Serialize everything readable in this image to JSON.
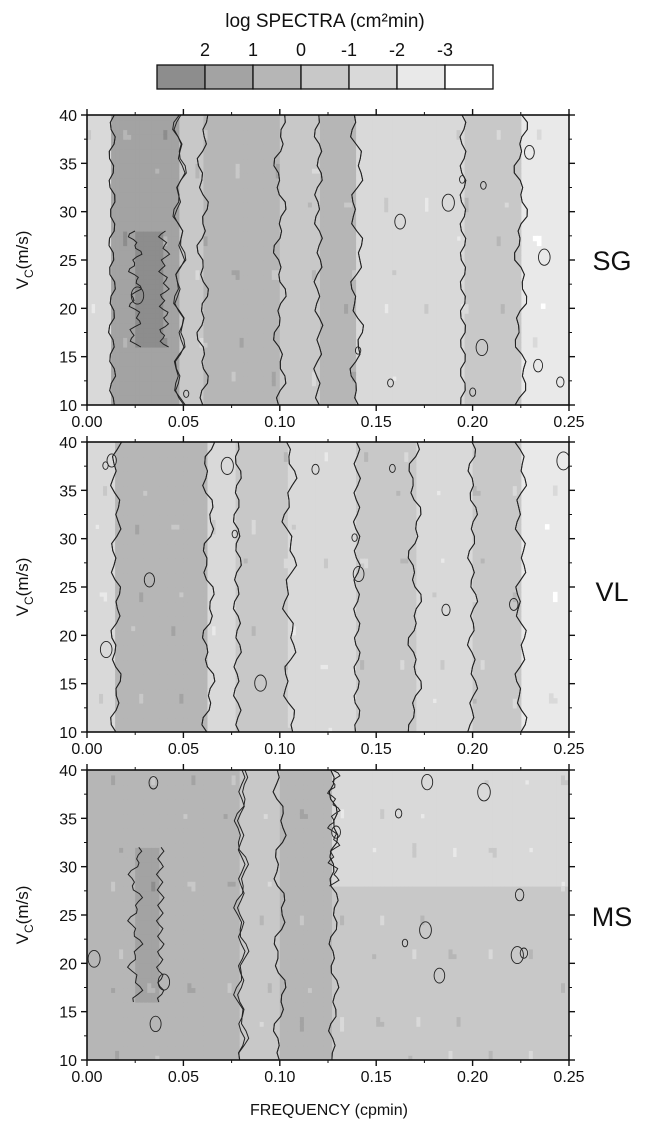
{
  "legend": {
    "title": "log SPECTRA (cm²min)",
    "levels": [
      "2",
      "1",
      "0",
      "-1",
      "-2",
      "-3"
    ],
    "colors": [
      "#8d8d8d",
      "#a3a3a3",
      "#b6b6b6",
      "#c8c8c8",
      "#d9d9d9",
      "#e9e9e9",
      "#ffffff"
    ]
  },
  "chart_data": [
    {
      "type": "heatmap",
      "panel_label": "SG",
      "ylabel": "VC(m/s)",
      "xlim": [
        0,
        0.25
      ],
      "ylim": [
        10,
        40
      ],
      "x_ticks": [
        "0.00",
        "0.05",
        "0.10",
        "0.15",
        "0.20",
        "0.25"
      ],
      "y_ticks": [
        "10",
        "15",
        "20",
        "25",
        "30",
        "35",
        "40"
      ],
      "dominant_bands": [
        {
          "x_from": 0.0,
          "x_to": 0.013,
          "level": "-1 to -2"
        },
        {
          "x_from": 0.013,
          "x_to": 0.048,
          "level": "1 to 2"
        },
        {
          "x_from": 0.025,
          "x_to": 0.04,
          "level": "above 2",
          "v_from": 16,
          "v_to": 28
        },
        {
          "x_from": 0.048,
          "x_to": 0.06,
          "level": "-1 to 0"
        },
        {
          "x_from": 0.06,
          "x_to": 0.1,
          "level": "0 to 1"
        },
        {
          "x_from": 0.1,
          "x_to": 0.12,
          "level": "-1 to 0"
        },
        {
          "x_from": 0.12,
          "x_to": 0.14,
          "level": "0 to 1"
        },
        {
          "x_from": 0.14,
          "x_to": 0.195,
          "level": "-2 to -1"
        },
        {
          "x_from": 0.195,
          "x_to": 0.225,
          "level": "-1 to 0"
        },
        {
          "x_from": 0.225,
          "x_to": 0.25,
          "level": "-3 to -2"
        }
      ]
    },
    {
      "type": "heatmap",
      "panel_label": "VL",
      "ylabel": "VC(m/s)",
      "xlim": [
        0,
        0.25
      ],
      "ylim": [
        10,
        40
      ],
      "x_ticks": [
        "0.00",
        "0.05",
        "0.10",
        "0.15",
        "0.20",
        "0.25"
      ],
      "y_ticks": [
        "10",
        "15",
        "20",
        "25",
        "30",
        "35",
        "40"
      ],
      "dominant_bands": [
        {
          "x_from": 0.0,
          "x_to": 0.015,
          "level": "-2 to -1"
        },
        {
          "x_from": 0.015,
          "x_to": 0.063,
          "level": "0 to 1"
        },
        {
          "x_from": 0.063,
          "x_to": 0.078,
          "level": "-2 to -1"
        },
        {
          "x_from": 0.078,
          "x_to": 0.105,
          "level": "-1 to 0"
        },
        {
          "x_from": 0.105,
          "x_to": 0.14,
          "level": "-2 to -1"
        },
        {
          "x_from": 0.14,
          "x_to": 0.17,
          "level": "-1 to 0"
        },
        {
          "x_from": 0.17,
          "x_to": 0.2,
          "level": "-2 to -1"
        },
        {
          "x_from": 0.2,
          "x_to": 0.225,
          "level": "-1 to 0"
        },
        {
          "x_from": 0.225,
          "x_to": 0.25,
          "level": "-3 to -2"
        }
      ]
    },
    {
      "type": "heatmap",
      "panel_label": "MS",
      "ylabel": "VC(m/s)",
      "xlabel": "FREQUENCY (cpmin)",
      "xlim": [
        0,
        0.25
      ],
      "ylim": [
        10,
        40
      ],
      "x_ticks": [
        "0.00",
        "0.05",
        "0.10",
        "0.15",
        "0.20",
        "0.25"
      ],
      "y_ticks": [
        "10",
        "15",
        "20",
        "25",
        "30",
        "35",
        "40"
      ],
      "dominant_bands": [
        {
          "x_from": 0.0,
          "x_to": 0.08,
          "level": "0 to 1"
        },
        {
          "x_from": 0.025,
          "x_to": 0.038,
          "level": "1 to 2",
          "v_from": 16,
          "v_to": 32
        },
        {
          "x_from": 0.08,
          "x_to": 0.1,
          "level": "-1 to 0"
        },
        {
          "x_from": 0.1,
          "x_to": 0.128,
          "level": "0 to 1"
        },
        {
          "x_from": 0.128,
          "x_to": 0.25,
          "level": "-1 to 0"
        },
        {
          "x_from": 0.128,
          "x_to": 0.25,
          "level": "-2 to -1",
          "v_from": 28,
          "v_to": 40
        }
      ]
    }
  ]
}
